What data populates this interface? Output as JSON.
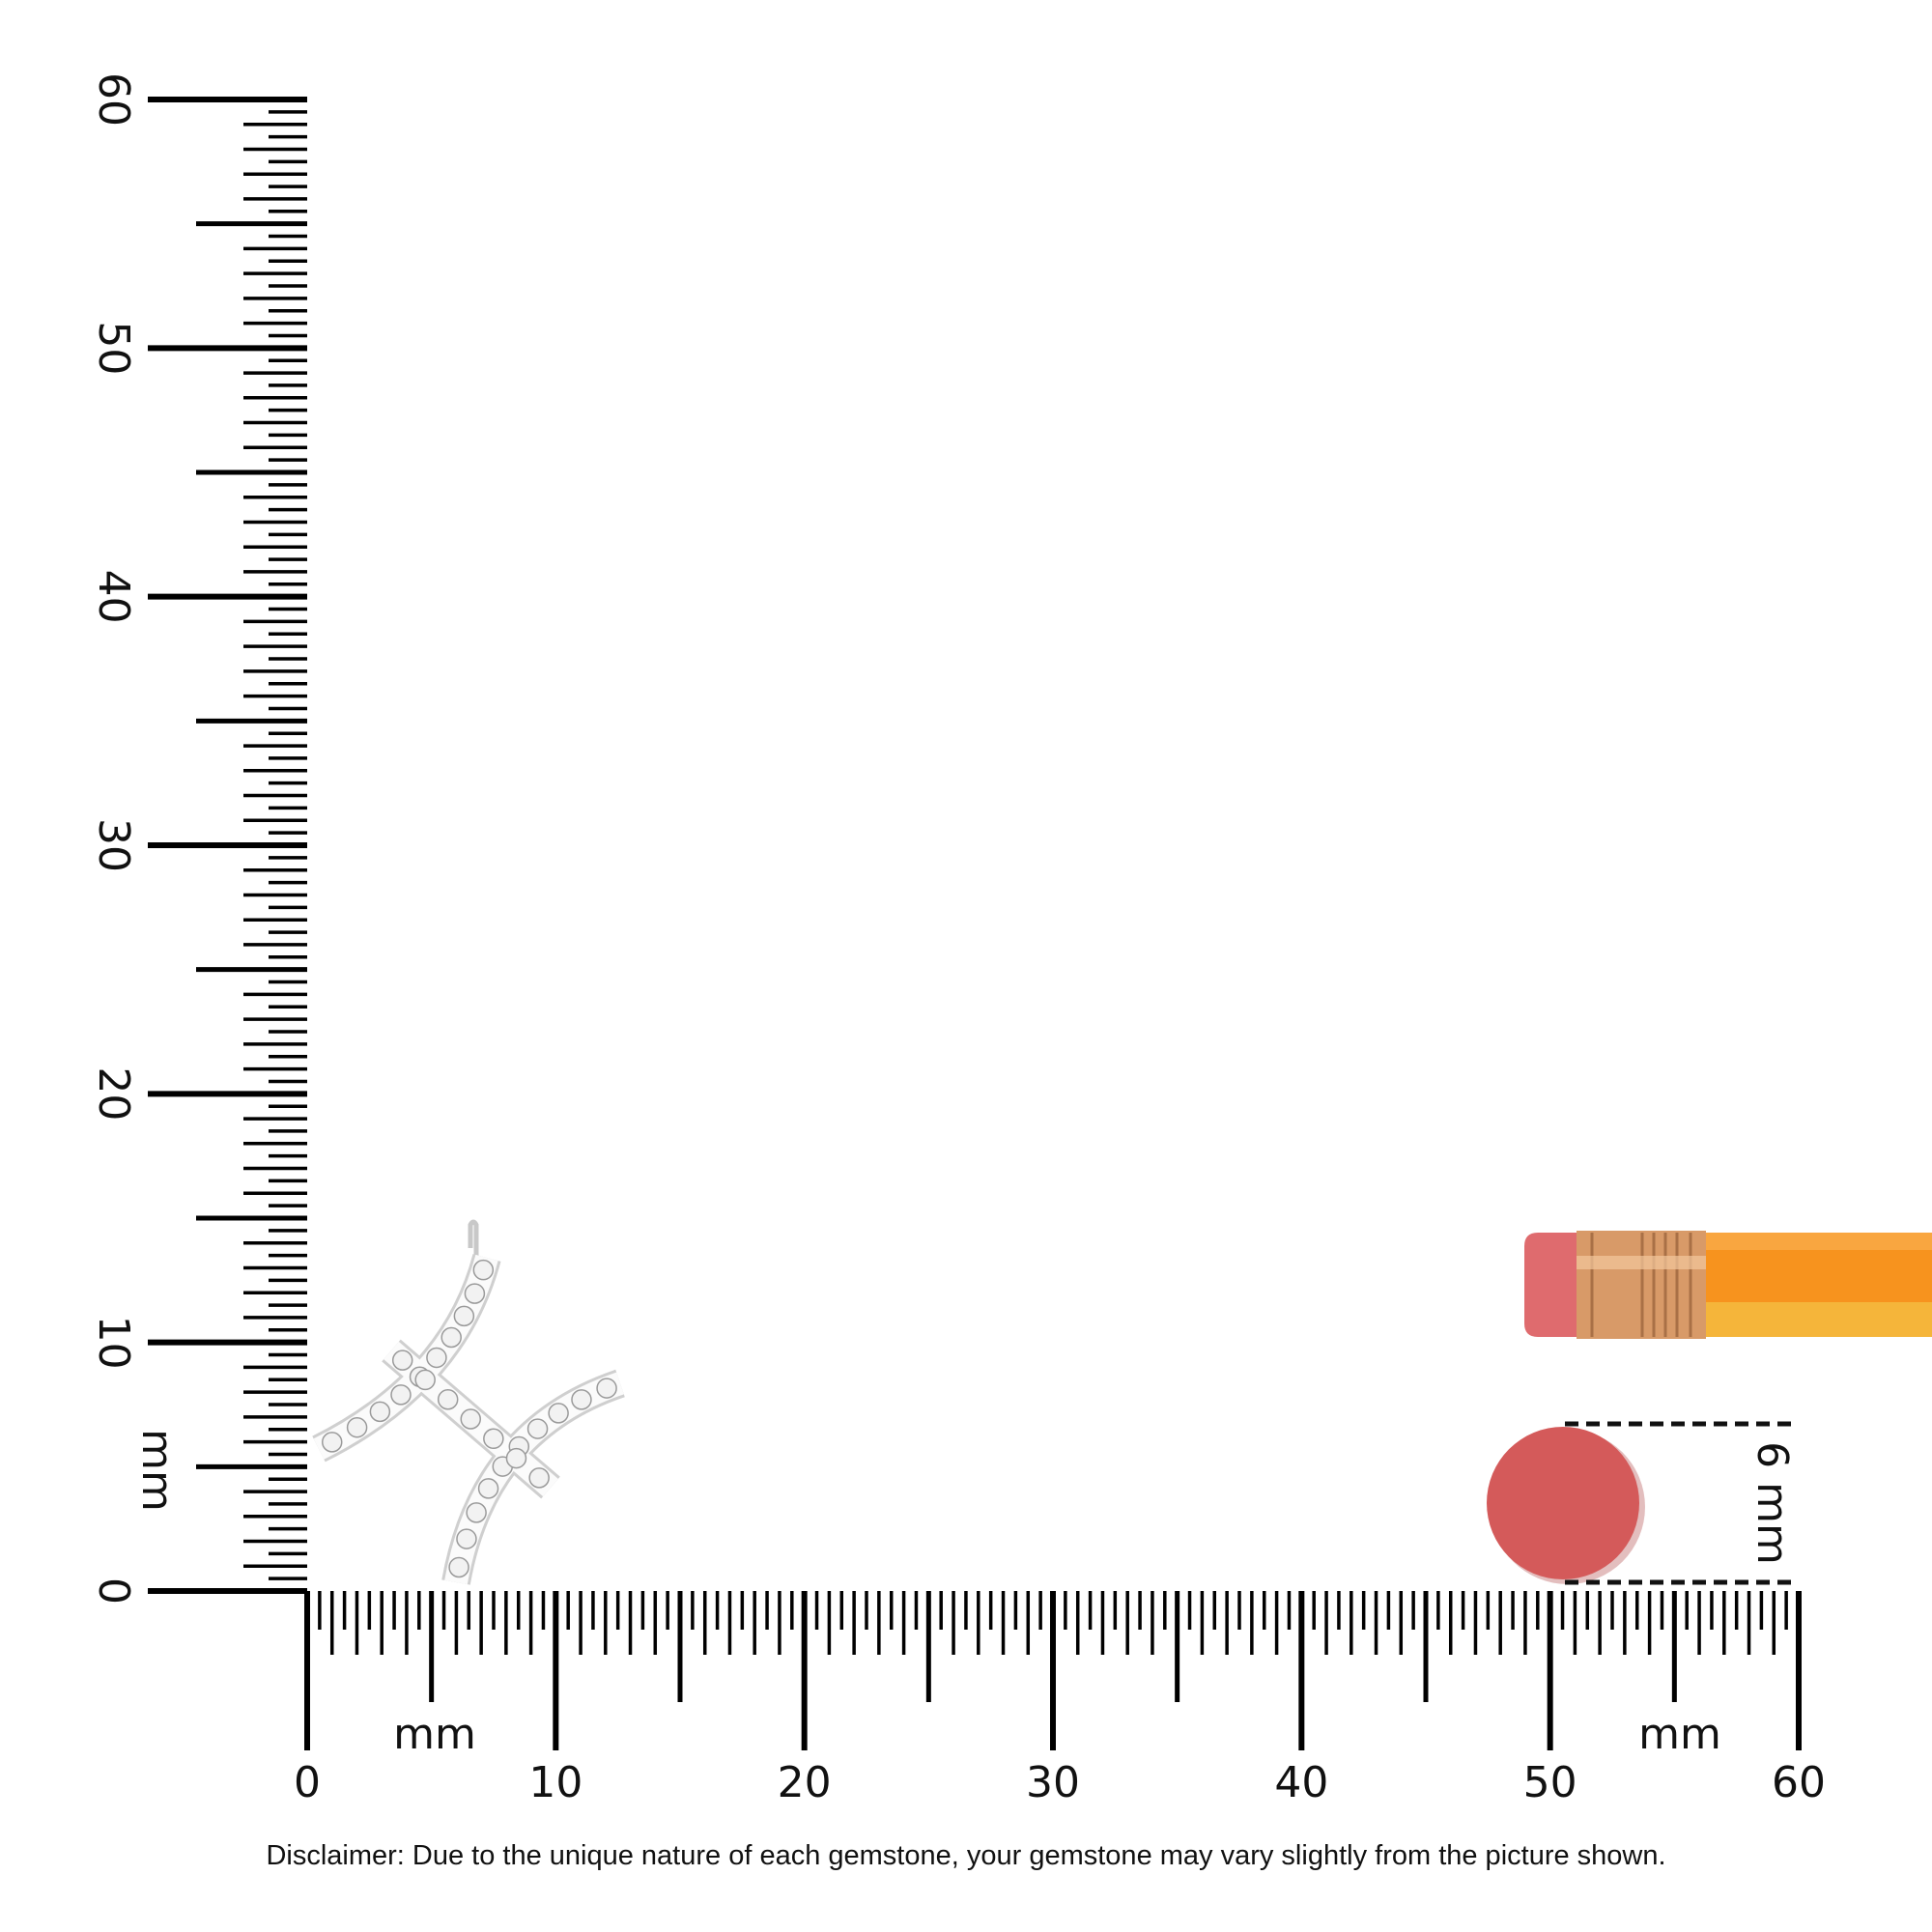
{
  "rulers": {
    "unit": "mm",
    "vertical": {
      "min": 0,
      "max": 60,
      "labels": [
        "0",
        "10",
        "20",
        "30",
        "40",
        "50",
        "60"
      ],
      "unit_label": "mm"
    },
    "horizontal": {
      "min": 0,
      "max": 60,
      "labels": [
        "0",
        "10",
        "20",
        "30",
        "40",
        "50",
        "60"
      ],
      "unit_label_left": "mm",
      "unit_label_right": "mm"
    }
  },
  "reference": {
    "size_label": "6 mm",
    "circle_color": "#d45a5a"
  },
  "pencil": {
    "eraser_color": "#df6b6e",
    "ferrule_color": "#d89a68",
    "body_color": "#f7931e"
  },
  "disclaimer": "Disclaimer: Due to the unique nature of each gemstone, your gemstone may vary slightly from the picture shown."
}
